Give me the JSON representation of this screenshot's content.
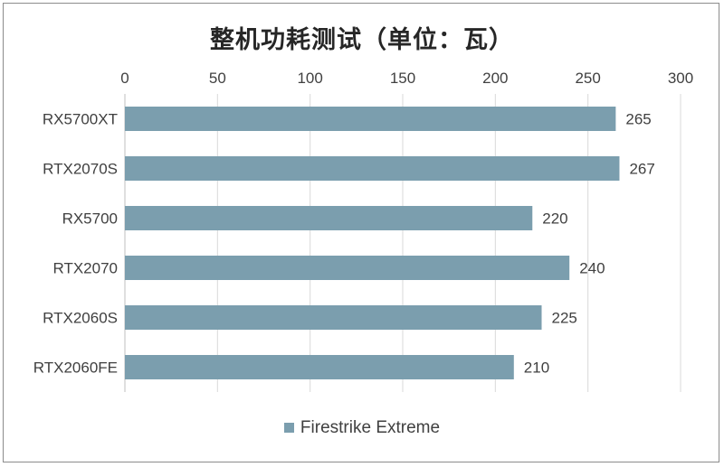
{
  "chart_data": {
    "type": "bar",
    "orientation": "horizontal",
    "title": "整机功耗测试（单位：瓦）",
    "categories": [
      "RX5700XT",
      "RTX2070S",
      "RX5700",
      "RTX2070",
      "RTX2060S",
      "RTX2060FE"
    ],
    "series": [
      {
        "name": "Firestrike Extreme",
        "values": [
          265,
          267,
          220,
          240,
          225,
          210
        ]
      }
    ],
    "xlim": [
      0,
      300
    ],
    "ticks": [
      0,
      50,
      100,
      150,
      200,
      250,
      300
    ],
    "tick_labels": [
      "0",
      "50",
      "100",
      "150",
      "200",
      "250",
      "300"
    ],
    "axis_position": "top",
    "grid": true,
    "data_labels": true,
    "legend_position": "bottom",
    "bar_color": "#7b9eae",
    "grid_color": "#d9d9d9",
    "text_color": "#404040"
  }
}
